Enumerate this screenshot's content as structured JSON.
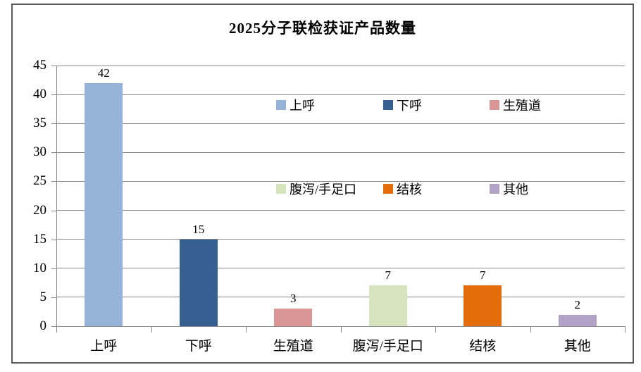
{
  "page": {
    "background": "#ffffff",
    "frame_border_color": "#595959",
    "gridline_color": "#898989",
    "axis_color": "#8a8a8a"
  },
  "chart_data": {
    "type": "bar",
    "title": "2025分子联检获证产品数量",
    "categories": [
      "上呼",
      "下呼",
      "生殖道",
      "腹泻/手足口",
      "结核",
      "其他"
    ],
    "values": [
      42,
      15,
      3,
      7,
      7,
      2
    ],
    "data_labels": [
      "42",
      "15",
      "3",
      "7",
      "7",
      "2"
    ],
    "bar_colors": [
      "#95B3D7",
      "#366092",
      "#D99694",
      "#D7E4BD",
      "#E46C0A",
      "#B3A2C7"
    ],
    "xlabel": "",
    "ylabel": "",
    "ylim": [
      0,
      45
    ],
    "ytick_step": 5,
    "yticks": [
      0,
      5,
      10,
      15,
      20,
      25,
      30,
      35,
      40,
      45
    ],
    "grid": true,
    "legend": {
      "position": "inside-plot-two-rows",
      "rows": [
        [
          {
            "label": "上呼",
            "color": "#95B3D7"
          },
          {
            "label": "下呼",
            "color": "#366092"
          },
          {
            "label": "生殖道",
            "color": "#D99694"
          }
        ],
        [
          {
            "label": "腹泻/手足口",
            "color": "#D7E4BD"
          },
          {
            "label": "结核",
            "color": "#E46C0A"
          },
          {
            "label": "其他",
            "color": "#B3A2C7"
          }
        ]
      ]
    }
  }
}
